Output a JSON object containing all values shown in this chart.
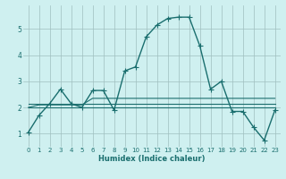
{
  "xlabel": "Humidex (Indice chaleur)",
  "bg_color": "#cff0f0",
  "grid_color": "#9fbfbf",
  "line_color": "#1a6e6e",
  "xlim": [
    -0.5,
    23.5
  ],
  "ylim": [
    0.5,
    5.9
  ],
  "xticks": [
    0,
    1,
    2,
    3,
    4,
    5,
    6,
    7,
    8,
    9,
    10,
    11,
    12,
    13,
    14,
    15,
    16,
    17,
    18,
    19,
    20,
    21,
    22,
    23
  ],
  "yticks": [
    1,
    2,
    3,
    4,
    5
  ],
  "series": [
    [
      1.05,
      1.7,
      2.15,
      2.7,
      2.15,
      2.0,
      2.65,
      2.65,
      1.9,
      3.4,
      3.55,
      4.7,
      5.15,
      5.4,
      5.45,
      5.45,
      4.35,
      2.7,
      3.0,
      1.85,
      1.85,
      1.25,
      0.75,
      1.9
    ],
    [
      2.15,
      2.15,
      2.15,
      2.15,
      2.15,
      2.15,
      2.15,
      2.15,
      2.15,
      2.15,
      2.15,
      2.15,
      2.15,
      2.15,
      2.15,
      2.15,
      2.15,
      2.15,
      2.15,
      2.15,
      2.15,
      2.15,
      2.15,
      2.15
    ],
    [
      2.0,
      2.0,
      2.0,
      2.0,
      2.0,
      2.0,
      2.0,
      2.0,
      2.0,
      2.0,
      2.0,
      2.0,
      2.0,
      2.0,
      2.0,
      2.0,
      2.0,
      2.0,
      2.0,
      2.0,
      2.0,
      2.0,
      2.0,
      2.0
    ],
    [
      2.0,
      2.1,
      2.1,
      2.1,
      2.1,
      2.1,
      2.35,
      2.35,
      2.35,
      2.35,
      2.35,
      2.35,
      2.35,
      2.35,
      2.35,
      2.35,
      2.35,
      2.35,
      2.35,
      2.35,
      2.35,
      2.35,
      2.35,
      2.35
    ]
  ],
  "series_markers": [
    "+",
    "None",
    "None",
    "None"
  ],
  "series_lw": [
    1.0,
    0.8,
    0.8,
    0.8
  ],
  "xlabel_fontsize": 6.0,
  "tick_fontsize": 5.0
}
